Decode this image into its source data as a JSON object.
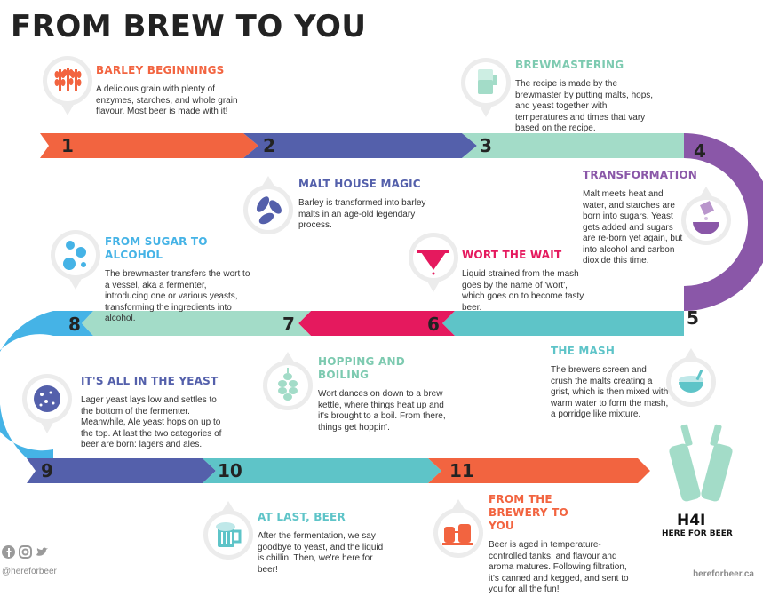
{
  "title": "FROM BREW TO YOU",
  "colors": {
    "orange": "#f26440",
    "indigo": "#5460ab",
    "mint": "#a3dcc8",
    "purple": "#8a57a8",
    "teal": "#5ec4c8",
    "pink": "#e5195e",
    "sky": "#45b3e6",
    "dark": "#232323"
  },
  "steps": [
    {
      "number": "1",
      "title": "BARLEY BEGINNINGS",
      "text": "A delicious grain with plenty of enzymes, starches, and whole grain flavour. Most beer is made with it!",
      "icon": "barley-icon"
    },
    {
      "number": "2",
      "title": "MALT HOUSE MAGIC",
      "text": "Barley is transformed into barley malts in an age-old legendary process.",
      "icon": "malt-icon"
    },
    {
      "number": "3",
      "title": "BREWMASTERING",
      "text": "The recipe is made by the brewmaster by putting malts, hops, and yeast together with temperatures and times that vary based on the recipe.",
      "icon": "measuring-cup-icon"
    },
    {
      "number": "4",
      "title": "TRANSFORMATION",
      "text": "Malt meets heat and water, and starches are born into sugars. Yeast gets added and sugars are re-born yet again, but into alcohol and carbon dioxide this time.",
      "icon": "mixing-bowl-icon"
    },
    {
      "number": "5",
      "title": "THE MASH",
      "text": "The brewers screen and crush the malts creating a grist, which is then mixed with warm water to form the mash, a porridge like mixture.",
      "icon": "porridge-bowl-icon"
    },
    {
      "number": "6",
      "title": "WORT THE WAIT",
      "text": "Liquid strained from the mash goes by the name of 'wort', which goes on to become tasty beer.",
      "icon": "strainer-icon"
    },
    {
      "number": "7",
      "title": "HOPPING AND BOILING",
      "text": "Wort dances on down to a brew kettle, where things heat up and it's brought to a boil. From there, things get hoppin'.",
      "icon": "hop-icon"
    },
    {
      "number": "8",
      "title": "FROM SUGAR TO ALCOHOL",
      "text": "The brewmaster transfers the wort to a vessel, aka a fermenter, introducing one or various yeasts, transforming the ingredients into alcohol.",
      "icon": "bubbles-icon"
    },
    {
      "number": "9",
      "title": "IT'S ALL IN THE YEAST",
      "text": "Lager yeast lays low and settles to the bottom of the fermenter. Meanwhile, Ale yeast hops on up to the top. At last the two categories of beer are born: lagers and ales.",
      "icon": "yeast-icon"
    },
    {
      "number": "10",
      "title": "AT LAST, BEER",
      "text": "After the fermentation, we say goodbye to yeast, and the liquid is chillin. Then, we're here for beer!",
      "icon": "beer-mug-icon"
    },
    {
      "number": "11",
      "title": "FROM THE BREWERY TO YOU",
      "text": "Beer is aged in temperature-controlled tanks, and flavour and aroma matures. Following filtration, it's canned and kegged, and sent to you for all the fun!",
      "icon": "brewery-tanks-icon"
    }
  ],
  "footer": {
    "handle": "@hereforbeer",
    "site": "hereforbeer.ca",
    "logo": "H4I",
    "tagline": "HERE FOR BEER",
    "social_icons": [
      "facebook-icon",
      "instagram-icon",
      "twitter-icon"
    ]
  }
}
